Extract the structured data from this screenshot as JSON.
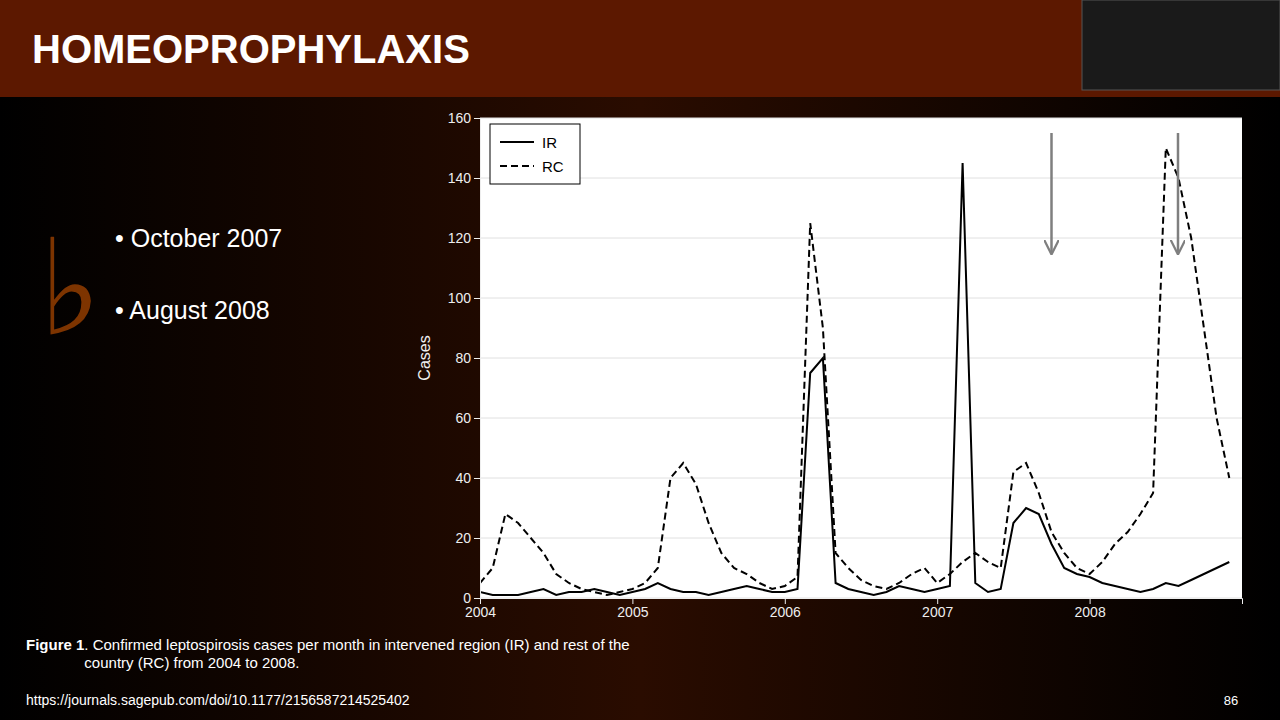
{
  "chart_data": {
    "type": "line",
    "title": "HOMEOPROPHYLAXIS",
    "y_label": "Cases",
    "annotations": [
      "♭",
      "• October 2007",
      "• August 2008",
      "Figure 1",
      ". Confirmed leptospirosis cases per month in intervened region (IR) and rest of the\ncountry (RC) from 2004 to 2008.",
      "https://journals.sagepub.com/doi/10.1177/2156587214525402",
      "86"
    ],
    "x": [
      2004,
      2004.0833333333,
      2004.1666666667,
      2004.25,
      2004.3333333333,
      2004.4166666667,
      2004.5,
      2004.5833333333,
      2004.6666666667,
      2004.75,
      2004.8333333333,
      2004.9166666667,
      2005,
      2005.0833333333,
      2005.1666666667,
      2005.25,
      2005.3333333333,
      2005.4166666667,
      2005.5,
      2005.5833333333,
      2005.6666666667,
      2005.75,
      2005.8333333333,
      2005.9166666667,
      2006,
      2006.0833333333,
      2006.1666666667,
      2006.25,
      2006.3333333333,
      2006.4166666667,
      2006.5,
      2006.5833333333,
      2006.6666666667,
      2006.75,
      2006.8333333333,
      2006.9166666667,
      2007,
      2007.0833333333,
      2007.1666666667,
      2007.25,
      2007.3333333333,
      2007.4166666667,
      2007.5,
      2007.5833333333,
      2007.6666666667,
      2007.75,
      2007.8333333333,
      2007.9166666667,
      2008,
      2008.0833333333,
      2008.1666666667,
      2008.25,
      2008.3333333333,
      2008.4166666667,
      2008.5,
      2008.5833333333,
      2008.6666666667,
      2008.75,
      2008.8333333333,
      2008.9166666667
    ],
    "series": [
      {
        "name": "IR",
        "color": "#000000",
        "line_style": "solid",
        "values": [
          2,
          1,
          1,
          1,
          2,
          3,
          1,
          2,
          2,
          3,
          2,
          1,
          2,
          3,
          5,
          3,
          2,
          2,
          1,
          2,
          3,
          4,
          3,
          2,
          2,
          3,
          75,
          80,
          5,
          3,
          2,
          1,
          2,
          4,
          3,
          2,
          3,
          4,
          145,
          5,
          2,
          3,
          25,
          30,
          28,
          18,
          10,
          8,
          7,
          5,
          4,
          3,
          2,
          3,
          5,
          4,
          6,
          8,
          10,
          12
        ]
      },
      {
        "name": "RC",
        "color": "#000000",
        "line_style": "dashed",
        "values": [
          5,
          10,
          28,
          25,
          20,
          15,
          8,
          5,
          3,
          2,
          1,
          2,
          3,
          5,
          10,
          40,
          45,
          38,
          25,
          15,
          10,
          8,
          5,
          3,
          4,
          7,
          125,
          90,
          15,
          10,
          6,
          4,
          3,
          5,
          8,
          10,
          5,
          8,
          12,
          15,
          12,
          10,
          42,
          45,
          35,
          22,
          15,
          10,
          8,
          12,
          18,
          22,
          28,
          35,
          150,
          140,
          120,
          90,
          60,
          40
        ]
      }
    ],
    "arrows": [
      {
        "x": 2007.75,
        "y_from": 155,
        "y_to": 115
      },
      {
        "x": 2008.58,
        "y_from": 155,
        "y_to": 115
      }
    ],
    "xlim": [
      2004,
      2009
    ],
    "xticks": [
      2004,
      2005,
      2006,
      2007,
      2008
    ],
    "ylim": [
      0,
      160
    ],
    "yticks": [
      0,
      20,
      40,
      60,
      80,
      100,
      120,
      140,
      160
    ],
    "grid": true,
    "legend": "upper left"
  }
}
